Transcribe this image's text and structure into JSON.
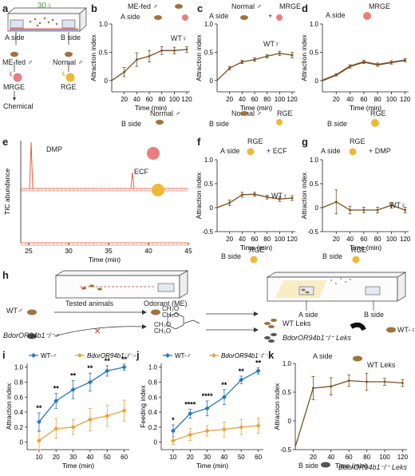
{
  "panels": {
    "a": {
      "label": "a",
      "count": "30♀",
      "a_side": "A side",
      "b_side": "B side",
      "me_fed": "ME-fed ♂",
      "normal": "Normal ♂",
      "mrge": "MRGE",
      "rge": "RGE",
      "chemical": "Chemical"
    },
    "b": {
      "label": "b",
      "top": "ME-fed ♂",
      "a_side": "A side",
      "wt": "WT♀",
      "bottom": "Normal ♂",
      "b_side": "B side"
    },
    "c": {
      "label": "c",
      "top1": "Normal ♂",
      "plus": "+",
      "top2": "MRGE",
      "a_side": "A side",
      "wt": "WT♀",
      "bottom1": "Normal ♂",
      "bottom2": "RGE",
      "b_side": "B side"
    },
    "d": {
      "label": "d",
      "top": "MRGE",
      "a_side": "A side",
      "bottom": "RGE",
      "b_side": "B side"
    },
    "e": {
      "label": "e",
      "dmp": "DMP",
      "ecf": "ECF"
    },
    "f": {
      "label": "f",
      "top": "RGE",
      "extra": "+ ECF",
      "a_side": "A side",
      "wt": "WT♀",
      "bottom": "RGE",
      "b_side": "B side"
    },
    "g": {
      "label": "g",
      "top": "RGE",
      "extra": "+ DMP",
      "a_side": "A side",
      "wt": "WT♀",
      "bottom": "RGE",
      "b_side": "B side"
    },
    "h": {
      "label": "h",
      "tested": "Tested animals",
      "odorant": "Odorant (ME)",
      "wt": "WT♂",
      "mutant": "BdorOR94b1⁻/⁻♂",
      "a_side": "A side",
      "b_side": "B side",
      "wt_leks": "WT Leks",
      "mut_leks": "BdorOR94b1⁻/⁻ Leks",
      "wt_female": "WT-♀",
      "chem": [
        "CH₃O",
        "CH₃O",
        "CH₃O",
        "CH₃O"
      ]
    },
    "i": {
      "label": "i"
    },
    "j": {
      "label": "j"
    },
    "k": {
      "label": "k",
      "a_side": "A side",
      "wt_leks": "WT Leks",
      "b_side": "B side",
      "mut_leks": "BdorOR94b1⁻/⁻ Leks"
    }
  },
  "chart_data": [
    {
      "id": "b",
      "type": "line",
      "x": [
        20,
        40,
        60,
        80,
        100,
        120
      ],
      "series": [
        {
          "values": [
            0.15,
            0.37,
            0.43,
            0.53,
            0.53,
            0.55
          ],
          "err": [
            0.08,
            0.12,
            0.1,
            0.07,
            0.06,
            0.05
          ]
        }
      ],
      "xlabel": "Time (min)",
      "ylabel": "Attraction index",
      "xlim": [
        0,
        125
      ],
      "ylim": [
        -0.2,
        1.0
      ],
      "xticks": [
        20,
        40,
        60,
        80,
        100,
        120
      ],
      "yticks": [
        0,
        0.5,
        1.0
      ],
      "ytick_labels": [
        "0",
        "0.5",
        "1.0"
      ]
    },
    {
      "id": "c",
      "type": "line",
      "x": [
        20,
        40,
        60,
        80,
        100,
        120
      ],
      "series": [
        {
          "values": [
            0.22,
            0.33,
            0.37,
            0.43,
            0.48,
            0.45
          ],
          "err": [
            0.03,
            0.03,
            0.03,
            0.03,
            0.04,
            0.05
          ]
        }
      ],
      "xlabel": "Time (min)",
      "ylabel": "Attraction index",
      "xlim": [
        0,
        125
      ],
      "ylim": [
        -0.2,
        1.0
      ],
      "xticks": [
        20,
        40,
        60,
        80,
        100,
        120
      ],
      "yticks": [
        0,
        0.5,
        1.0
      ],
      "ytick_labels": [
        "0",
        "0.5",
        "1.0"
      ]
    },
    {
      "id": "d",
      "type": "line",
      "x": [
        20,
        40,
        60,
        80,
        100,
        120
      ],
      "series": [
        {
          "values": [
            0.1,
            0.25,
            0.33,
            0.28,
            0.32,
            0.36
          ],
          "err": [
            0.02,
            0.03,
            0.03,
            0.03,
            0.03,
            0.03
          ]
        }
      ],
      "xlabel": "Time (min)",
      "ylabel": "Attraction index",
      "xlim": [
        0,
        125
      ],
      "ylim": [
        -0.2,
        1.0
      ],
      "xticks": [
        20,
        40,
        60,
        80,
        100,
        120
      ],
      "yticks": [
        0,
        0.5,
        1.0
      ],
      "ytick_labels": [
        "0",
        "0.5",
        "1.0"
      ]
    },
    {
      "id": "e",
      "type": "line",
      "xlabel": "Time (min)",
      "ylabel": "TIC abundance",
      "xlim": [
        24,
        45
      ],
      "xticks": [
        25,
        30,
        35,
        40,
        45
      ],
      "peaks": [
        {
          "name": "DMP",
          "x": 25.3
        },
        {
          "name": "ECF",
          "x": 38.0
        }
      ]
    },
    {
      "id": "f",
      "type": "line",
      "x": [
        20,
        40,
        60,
        80,
        100,
        120
      ],
      "series": [
        {
          "values": [
            0.1,
            0.27,
            0.28,
            0.22,
            0.18,
            0.2
          ],
          "err": [
            0.06,
            0.05,
            0.04,
            0.04,
            0.05,
            0.05
          ]
        }
      ],
      "xlabel": "Time (min)",
      "ylabel": "Attraction index",
      "xlim": [
        0,
        125
      ],
      "ylim": [
        -0.5,
        1.0
      ],
      "xticks": [
        20,
        40,
        60,
        80,
        100,
        120
      ],
      "yticks": [
        -0.5,
        0,
        0.5,
        1.0
      ],
      "ytick_labels": [
        "-0.5",
        "0",
        "0.5",
        "1.0"
      ]
    },
    {
      "id": "g",
      "type": "line",
      "x": [
        20,
        40,
        60,
        80,
        100,
        120
      ],
      "series": [
        {
          "values": [
            0.12,
            -0.05,
            -0.05,
            -0.05,
            0.05,
            -0.05
          ],
          "err": [
            0.25,
            0.08,
            0.06,
            0.06,
            0.06,
            0.06
          ]
        }
      ],
      "xlabel": "Time (min)",
      "ylabel": "Attraction index",
      "xlim": [
        0,
        125
      ],
      "ylim": [
        -0.5,
        1.0
      ],
      "xticks": [
        20,
        40,
        60,
        80,
        100,
        120
      ],
      "yticks": [
        -0.5,
        0,
        0.5,
        1.0
      ],
      "ytick_labels": [
        "-0.5",
        "0",
        "0.5",
        "1.0"
      ]
    },
    {
      "id": "i",
      "type": "line",
      "x": [
        10,
        20,
        30,
        40,
        50,
        60
      ],
      "series": [
        {
          "name": "WT-♂",
          "color": "#2878b8",
          "values": [
            0.27,
            0.55,
            0.7,
            0.8,
            0.95,
            1.0
          ],
          "err": [
            0.12,
            0.1,
            0.12,
            0.12,
            0.07,
            0.04
          ]
        },
        {
          "name": "BdorOR94b1⁻/⁻♂",
          "color": "#e8a33a",
          "values": [
            0.02,
            0.18,
            0.2,
            0.3,
            0.35,
            0.42
          ],
          "err": [
            0.12,
            0.13,
            0.1,
            0.15,
            0.14,
            0.14
          ]
        }
      ],
      "annotations": [
        "**",
        "**",
        "**",
        "**",
        "**",
        "**"
      ],
      "xlabel": "Time (min)",
      "ylabel": "Attraction index",
      "xlim": [
        3,
        63
      ],
      "ylim": [
        -0.1,
        1.05
      ],
      "xticks": [
        10,
        20,
        30,
        40,
        50,
        60
      ],
      "yticks": [
        0,
        0.2,
        0.4,
        0.6,
        0.8,
        1.0
      ],
      "ytick_labels": [
        "0",
        "0.2",
        "0.4",
        "0.6",
        "0.8",
        "1.0"
      ]
    },
    {
      "id": "j",
      "type": "line",
      "x": [
        10,
        20,
        30,
        40,
        50,
        60
      ],
      "series": [
        {
          "name": "WT-♂",
          "color": "#2878b8",
          "values": [
            0.15,
            0.38,
            0.45,
            0.6,
            0.83,
            0.95
          ],
          "err": [
            0.08,
            0.06,
            0.1,
            0.1,
            0.05,
            0.04
          ]
        },
        {
          "name": "BdorOR94b1⁻/⁻♂",
          "color": "#e8a33a",
          "values": [
            0.02,
            0.1,
            0.15,
            0.17,
            0.2,
            0.22
          ],
          "err": [
            0.05,
            0.08,
            0.07,
            0.1,
            0.1,
            0.1
          ]
        }
      ],
      "annotations": [
        "*",
        "****",
        "****",
        "**",
        "**",
        "**"
      ],
      "xlabel": "Time (min)",
      "ylabel": "Feeding index",
      "xlim": [
        3,
        63
      ],
      "ylim": [
        -0.1,
        1.05
      ],
      "xticks": [
        10,
        20,
        30,
        40,
        50,
        60
      ],
      "yticks": [
        0,
        0.2,
        0.4,
        0.6,
        0.8,
        1.0
      ],
      "ytick_labels": [
        "0",
        "0.2",
        "0.4",
        "0.6",
        "0.8",
        "1.0"
      ]
    },
    {
      "id": "k",
      "type": "line",
      "x": [
        20,
        40,
        60,
        80,
        100,
        120
      ],
      "series": [
        {
          "values": [
            0.57,
            0.6,
            0.7,
            0.68,
            0.68,
            0.66
          ],
          "err": [
            0.2,
            0.15,
            0.1,
            0.15,
            0.06,
            0.06
          ]
        }
      ],
      "xlabel": "Time (min)",
      "ylabel": "Attraction index",
      "xlim": [
        0,
        125
      ],
      "ylim": [
        -0.5,
        1.0
      ],
      "xticks": [
        20,
        40,
        60,
        80,
        100,
        120
      ],
      "yticks": [
        -0.5,
        0,
        0.5,
        1.0
      ],
      "ytick_labels": [
        "-0.5",
        "0",
        "0.5",
        "1.0"
      ]
    }
  ],
  "colors": {
    "line": "#7a5020",
    "wt": "#2878b8",
    "mut": "#e8a33a",
    "peak": "#e8502a",
    "bait_pink": "#ea7e7e",
    "bait_yellow": "#f0b838",
    "cross": "#d43a2a"
  }
}
